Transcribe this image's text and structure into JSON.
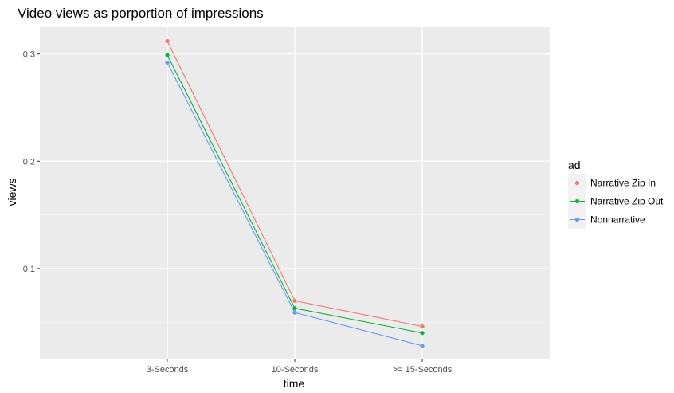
{
  "chart_data": {
    "type": "line",
    "title": "Video views as porportion of impressions",
    "xlabel": "time",
    "ylabel": "views",
    "categories": [
      "3-Seconds",
      "10-Seconds",
      ">= 15-Seconds"
    ],
    "yticks": [
      0.1,
      0.2,
      0.3
    ],
    "ytick_labels": [
      "0.1",
      "0.2",
      "0.3"
    ],
    "ylim": [
      0.016,
      0.325
    ],
    "grid": true,
    "legend": {
      "title": "ad",
      "placement": "right"
    },
    "series": [
      {
        "name": "Narrative Zip In",
        "color": "#F8766D",
        "values": [
          0.312,
          0.07,
          0.046
        ]
      },
      {
        "name": "Narrative Zip Out",
        "color": "#00BA38",
        "values": [
          0.299,
          0.063,
          0.04
        ]
      },
      {
        "name": "Nonnarrative",
        "color": "#619CFF",
        "values": [
          0.292,
          0.059,
          0.028
        ]
      }
    ]
  }
}
